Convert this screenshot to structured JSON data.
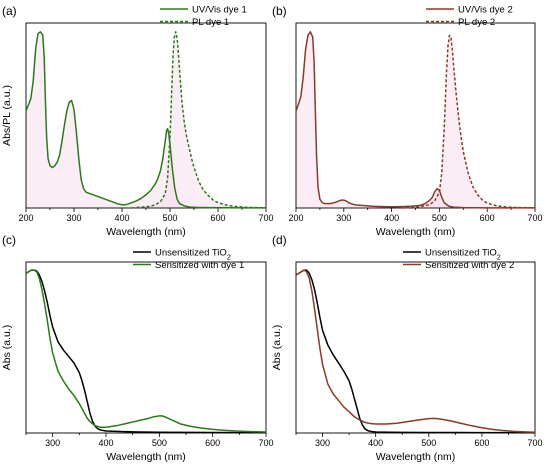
{
  "colors": {
    "dye1": "#2a7a1a",
    "dye2": "#8b3a26",
    "tio2": "#000000",
    "pink": "#f7d6ec"
  },
  "chart_data": [
    {
      "type": "line",
      "panel_label": "(a)",
      "xlabel": "Wavelength (nm)",
      "ylabel": "Abs/PL (a.u.)",
      "xlim": [
        200,
        700
      ],
      "ylim": [
        0,
        1.05
      ],
      "xticks": [
        200,
        300,
        400,
        500,
        600,
        700
      ],
      "show_ytick_labels": false,
      "legend_position": "top-right",
      "series": [
        {
          "name": "UV/Vis dye 1",
          "color": "#2a7a1a",
          "style": "solid",
          "x": [
            200,
            210,
            215,
            220,
            225,
            230,
            235,
            238,
            240,
            243,
            246,
            250,
            255,
            260,
            265,
            270,
            275,
            280,
            285,
            290,
            295,
            300,
            305,
            310,
            315,
            320,
            325,
            330,
            340,
            350,
            360,
            370,
            380,
            390,
            400,
            410,
            420,
            430,
            440,
            450,
            460,
            470,
            475,
            480,
            485,
            490,
            493,
            495,
            497,
            500,
            505,
            510,
            515,
            520,
            530,
            540,
            550,
            560,
            580,
            600,
            650,
            700
          ],
          "y": [
            0.55,
            0.62,
            0.72,
            0.9,
            0.99,
            1.0,
            0.98,
            0.85,
            0.65,
            0.4,
            0.28,
            0.24,
            0.23,
            0.24,
            0.26,
            0.3,
            0.38,
            0.47,
            0.55,
            0.6,
            0.61,
            0.56,
            0.43,
            0.28,
            0.16,
            0.11,
            0.09,
            0.085,
            0.075,
            0.065,
            0.055,
            0.045,
            0.035,
            0.025,
            0.018,
            0.02,
            0.03,
            0.04,
            0.055,
            0.075,
            0.1,
            0.14,
            0.17,
            0.21,
            0.28,
            0.38,
            0.44,
            0.45,
            0.43,
            0.36,
            0.22,
            0.11,
            0.05,
            0.025,
            0.012,
            0.006,
            0.004,
            0.003,
            0.002,
            0.002,
            0.001,
            0.001
          ]
        },
        {
          "name": "PL dye 1",
          "color": "#2a7a1a",
          "style": "dashed",
          "x": [
            420,
            440,
            460,
            470,
            480,
            490,
            495,
            500,
            503,
            506,
            509,
            512,
            515,
            518,
            521,
            525,
            530,
            535,
            540,
            545,
            550,
            560,
            570,
            580,
            590,
            600,
            620,
            640,
            660,
            680,
            700
          ],
          "y": [
            0.0,
            0.005,
            0.01,
            0.02,
            0.035,
            0.08,
            0.17,
            0.4,
            0.62,
            0.85,
            0.97,
            1.0,
            0.96,
            0.86,
            0.74,
            0.6,
            0.48,
            0.4,
            0.34,
            0.28,
            0.23,
            0.15,
            0.1,
            0.07,
            0.045,
            0.03,
            0.015,
            0.008,
            0.004,
            0.002,
            0.001
          ]
        }
      ]
    },
    {
      "type": "line",
      "panel_label": "(b)",
      "xlabel": "Wavelength (nm)",
      "ylabel": "",
      "xlim": [
        200,
        700
      ],
      "ylim": [
        0,
        1.05
      ],
      "xticks": [
        200,
        300,
        400,
        500,
        600,
        700
      ],
      "show_ytick_labels": false,
      "legend_position": "top-right",
      "series": [
        {
          "name": "UV/Vis dye 2",
          "color": "#8b3a26",
          "style": "solid",
          "x": [
            200,
            210,
            215,
            220,
            225,
            230,
            235,
            238,
            240,
            243,
            246,
            250,
            255,
            260,
            270,
            280,
            290,
            295,
            300,
            305,
            310,
            320,
            330,
            340,
            350,
            360,
            380,
            400,
            420,
            440,
            460,
            470,
            480,
            485,
            490,
            495,
            500,
            505,
            510,
            520,
            530,
            550,
            600,
            650,
            700
          ],
          "y": [
            0.55,
            0.63,
            0.74,
            0.9,
            0.98,
            1.0,
            0.97,
            0.82,
            0.6,
            0.3,
            0.12,
            0.05,
            0.03,
            0.025,
            0.025,
            0.03,
            0.04,
            0.045,
            0.045,
            0.04,
            0.03,
            0.02,
            0.016,
            0.014,
            0.012,
            0.01,
            0.008,
            0.007,
            0.008,
            0.01,
            0.015,
            0.025,
            0.045,
            0.06,
            0.09,
            0.11,
            0.1,
            0.06,
            0.03,
            0.01,
            0.005,
            0.002,
            0.001,
            0.001,
            0.001
          ]
        },
        {
          "name": "PL dye 2",
          "color": "#8b3a26",
          "style": "dashed",
          "x": [
            420,
            440,
            460,
            480,
            490,
            500,
            505,
            510,
            515,
            518,
            521,
            524,
            527,
            530,
            535,
            540,
            545,
            550,
            560,
            570,
            580,
            590,
            600,
            620,
            640,
            660,
            680,
            700
          ],
          "y": [
            0.0,
            0.003,
            0.008,
            0.02,
            0.04,
            0.09,
            0.2,
            0.45,
            0.78,
            0.92,
            0.98,
            0.97,
            0.9,
            0.8,
            0.65,
            0.52,
            0.41,
            0.32,
            0.2,
            0.12,
            0.075,
            0.045,
            0.028,
            0.012,
            0.006,
            0.003,
            0.002,
            0.001
          ]
        }
      ]
    },
    {
      "type": "line",
      "panel_label": "(c)",
      "xlabel": "Wavelength (nm)",
      "ylabel": "Abs (a.u.)",
      "xlim": [
        250,
        700
      ],
      "ylim": [
        0,
        1.05
      ],
      "xticks": [
        300,
        400,
        500,
        600,
        700
      ],
      "show_ytick_labels": false,
      "legend_position": "top-right",
      "series": [
        {
          "name": "Unsensitized TiO2",
          "color": "#000000",
          "style": "solid",
          "x": [
            250,
            255,
            260,
            265,
            270,
            275,
            280,
            285,
            290,
            295,
            300,
            310,
            320,
            330,
            340,
            350,
            355,
            360,
            365,
            370,
            375,
            380,
            385,
            390,
            400,
            450,
            500,
            550,
            600,
            650,
            700
          ],
          "y": [
            0.98,
            0.99,
            1.0,
            1.0,
            0.995,
            0.97,
            0.93,
            0.87,
            0.8,
            0.72,
            0.65,
            0.56,
            0.51,
            0.47,
            0.43,
            0.37,
            0.32,
            0.26,
            0.19,
            0.12,
            0.07,
            0.04,
            0.025,
            0.018,
            0.012,
            0.007,
            0.005,
            0.004,
            0.003,
            0.002,
            0.002
          ]
        },
        {
          "name": "Sensitized with dye 1",
          "color": "#2a7a1a",
          "style": "solid",
          "x": [
            250,
            255,
            260,
            265,
            270,
            275,
            280,
            285,
            290,
            295,
            300,
            310,
            320,
            330,
            340,
            350,
            360,
            365,
            370,
            375,
            380,
            390,
            400,
            420,
            440,
            460,
            480,
            490,
            500,
            505,
            510,
            520,
            530,
            540,
            560,
            580,
            600,
            620,
            640,
            660,
            680,
            700
          ],
          "y": [
            0.98,
            0.99,
            1.0,
            1.0,
            0.99,
            0.95,
            0.88,
            0.79,
            0.69,
            0.58,
            0.49,
            0.38,
            0.32,
            0.27,
            0.23,
            0.18,
            0.12,
            0.09,
            0.07,
            0.055,
            0.045,
            0.035,
            0.035,
            0.045,
            0.06,
            0.075,
            0.09,
            0.1,
            0.105,
            0.105,
            0.1,
            0.085,
            0.07,
            0.055,
            0.04,
            0.03,
            0.022,
            0.017,
            0.013,
            0.01,
            0.008,
            0.006
          ]
        }
      ]
    },
    {
      "type": "line",
      "panel_label": "(d)",
      "xlabel": "Wavelength (nm)",
      "ylabel": "Abs (a.u.)",
      "xlim": [
        250,
        700
      ],
      "ylim": [
        0,
        1.05
      ],
      "xticks": [
        300,
        400,
        500,
        600,
        700
      ],
      "show_ytick_labels": false,
      "legend_position": "top-right",
      "series": [
        {
          "name": "Unsensitized TiO2",
          "color": "#000000",
          "style": "solid",
          "x": [
            250,
            255,
            260,
            265,
            270,
            275,
            280,
            285,
            290,
            295,
            300,
            310,
            320,
            330,
            340,
            350,
            355,
            360,
            365,
            370,
            375,
            380,
            385,
            390,
            400,
            450,
            500,
            550,
            600,
            650,
            700
          ],
          "y": [
            0.97,
            0.98,
            0.99,
            1.0,
            1.0,
            0.98,
            0.94,
            0.88,
            0.8,
            0.71,
            0.63,
            0.54,
            0.48,
            0.43,
            0.38,
            0.32,
            0.27,
            0.21,
            0.15,
            0.09,
            0.05,
            0.025,
            0.015,
            0.01,
            0.006,
            0.004,
            0.003,
            0.003,
            0.002,
            0.002,
            0.002
          ]
        },
        {
          "name": "Sensitized with dye 2",
          "color": "#8b3a26",
          "style": "solid",
          "x": [
            250,
            255,
            260,
            265,
            270,
            275,
            280,
            285,
            290,
            295,
            300,
            310,
            320,
            330,
            340,
            350,
            360,
            370,
            380,
            390,
            400,
            420,
            440,
            460,
            480,
            500,
            510,
            520,
            540,
            560,
            580,
            600,
            620,
            640,
            660,
            680,
            700
          ],
          "y": [
            0.97,
            0.98,
            0.99,
            1.0,
            0.99,
            0.95,
            0.87,
            0.76,
            0.64,
            0.52,
            0.42,
            0.3,
            0.24,
            0.2,
            0.16,
            0.13,
            0.1,
            0.08,
            0.065,
            0.058,
            0.055,
            0.055,
            0.06,
            0.07,
            0.08,
            0.088,
            0.09,
            0.087,
            0.075,
            0.06,
            0.045,
            0.032,
            0.022,
            0.015,
            0.01,
            0.007,
            0.005
          ]
        }
      ]
    }
  ]
}
